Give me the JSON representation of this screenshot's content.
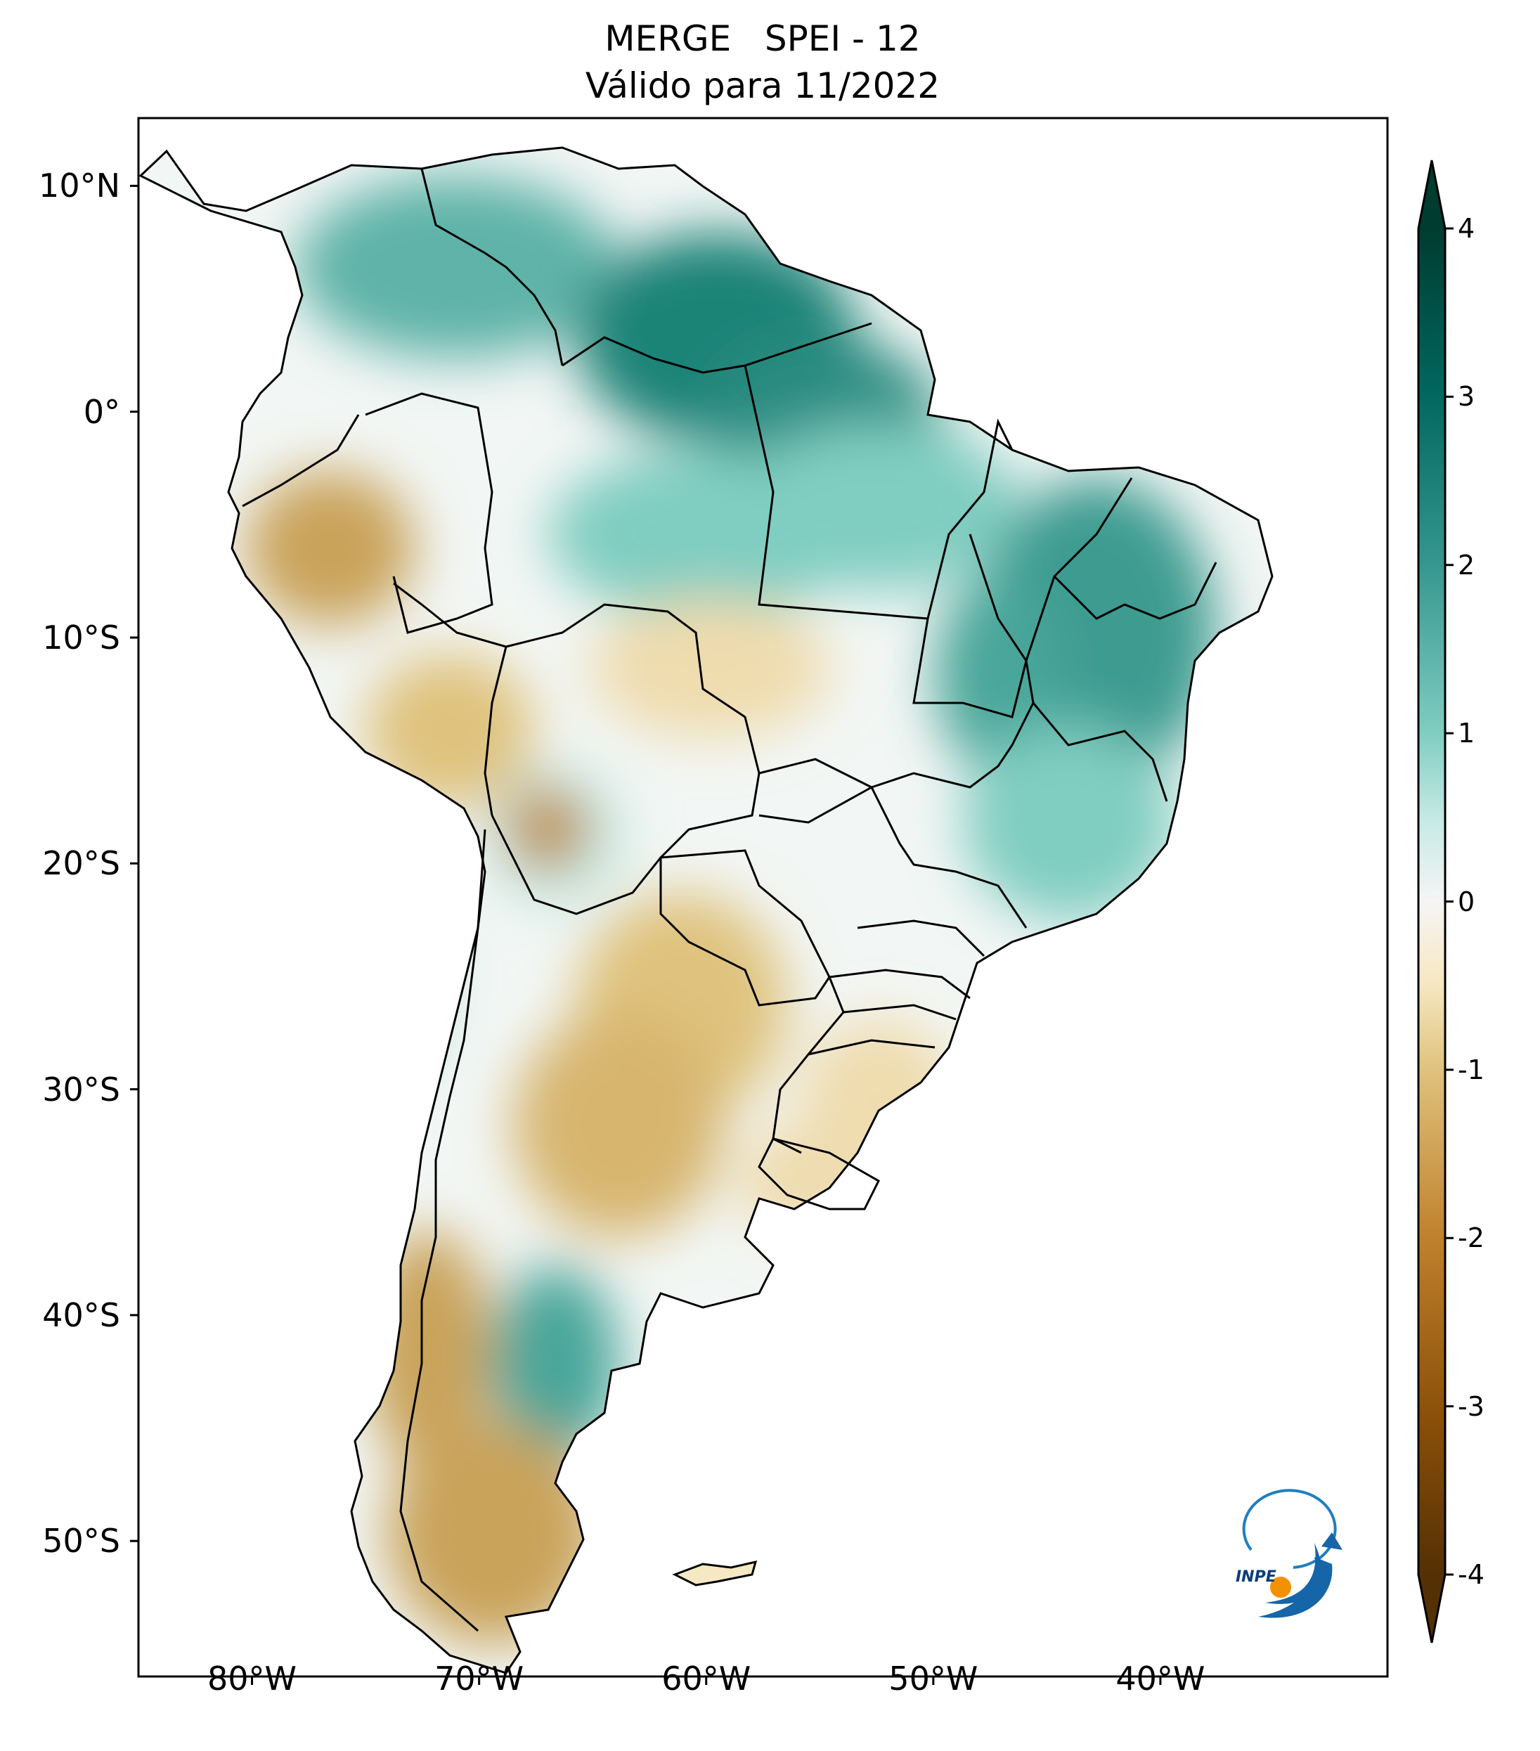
{
  "figure": {
    "title_line1": "MERGE   SPEI - 12",
    "title_line2": "Válido para 11/2022"
  },
  "map": {
    "region": "South America",
    "projection": "PlateCarree",
    "lon_range": [
      -85,
      -30
    ],
    "lat_range": [
      -56,
      13
    ],
    "variable": "SPEI - 12",
    "lat_ticks": [
      {
        "value": 10,
        "label": "10°N"
      },
      {
        "value": 0,
        "label": "0°"
      },
      {
        "value": -10,
        "label": "10°S"
      },
      {
        "value": -20,
        "label": "20°S"
      },
      {
        "value": -30,
        "label": "30°S"
      },
      {
        "value": -40,
        "label": "40°S"
      },
      {
        "value": -50,
        "label": "50°S"
      }
    ],
    "lon_ticks": [
      {
        "value": -80,
        "label": "80°W"
      },
      {
        "value": -70,
        "label": "70°W"
      },
      {
        "value": -60,
        "label": "60°W"
      },
      {
        "value": -50,
        "label": "50°W"
      },
      {
        "value": -40,
        "label": "40°W"
      }
    ]
  },
  "colorbar": {
    "colormap": "BrBG",
    "range": [
      -4,
      4
    ],
    "ticks": [
      "4",
      "3",
      "2",
      "1",
      "0",
      "-1",
      "-2",
      "-3",
      "-4"
    ],
    "colors": {
      "dry_extreme": "#543005",
      "dry": "#bf812d",
      "slight_dry": "#f6e8c3",
      "neutral": "#f5f5f5",
      "slight_wet": "#c7eae5",
      "wet": "#35978f",
      "wet_extreme": "#003c30"
    }
  },
  "logo": {
    "text": "INPE"
  }
}
